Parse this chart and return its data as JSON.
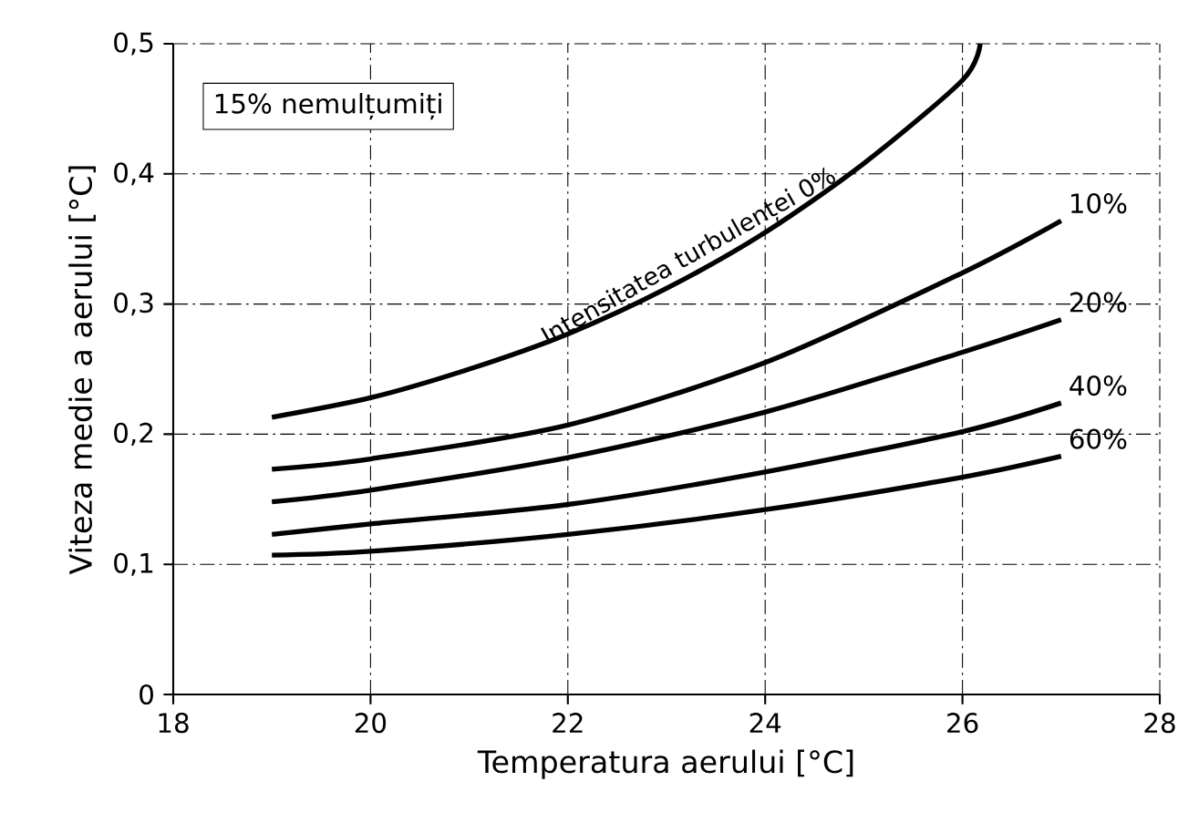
{
  "chart_data": {
    "type": "line",
    "xlabel": "Temperatura aerului [°C]",
    "ylabel": "Viteza medie a aerului [°C]",
    "annotations": [
      "15% nemulțumiți"
    ],
    "xlim": [
      18,
      28
    ],
    "xticks": [
      18,
      20,
      22,
      24,
      26,
      28
    ],
    "ylim": [
      0,
      0.5
    ],
    "yticks": [
      0,
      {
        "value": 0.1,
        "label": "0,1"
      },
      {
        "value": 0.2,
        "label": "0,2"
      },
      {
        "value": 0.3,
        "label": "0,3"
      },
      {
        "value": 0.4,
        "label": "0,4"
      },
      {
        "value": 0.5,
        "label": "0,5"
      }
    ],
    "grid": true,
    "series": [
      {
        "name": "Intensitatea turbulenței 0%",
        "color": "#000000",
        "x": [
          19,
          20,
          21,
          22,
          23,
          24,
          25,
          26,
          26.18
        ],
        "values": [
          0.213,
          0.228,
          0.25,
          0.277,
          0.312,
          0.355,
          0.408,
          0.472,
          0.5
        ]
      },
      {
        "name": "10%",
        "color": "#000000",
        "x": [
          19,
          20,
          22,
          24,
          26,
          27
        ],
        "values": [
          0.173,
          0.181,
          0.207,
          0.255,
          0.324,
          0.364
        ]
      },
      {
        "name": "20%",
        "color": "#000000",
        "x": [
          19,
          20,
          22,
          24,
          26,
          27
        ],
        "values": [
          0.148,
          0.157,
          0.182,
          0.217,
          0.263,
          0.288
        ]
      },
      {
        "name": "40%",
        "color": "#000000",
        "x": [
          19,
          20,
          22,
          24,
          26,
          27
        ],
        "values": [
          0.123,
          0.131,
          0.146,
          0.171,
          0.202,
          0.224
        ]
      },
      {
        "name": "60%",
        "color": "#000000",
        "x": [
          19,
          20,
          22,
          24,
          26,
          27
        ],
        "values": [
          0.107,
          0.11,
          0.123,
          0.142,
          0.167,
          0.183
        ]
      }
    ]
  }
}
